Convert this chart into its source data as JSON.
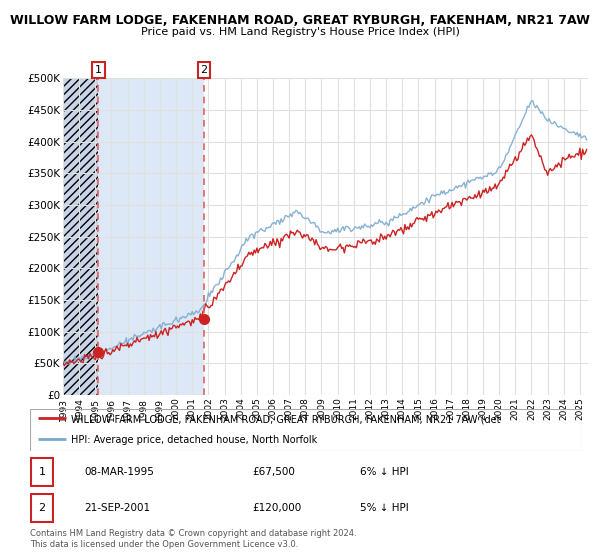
{
  "title": "WILLOW FARM LODGE, FAKENHAM ROAD, GREAT RYBURGH, FAKENHAM, NR21 7AW",
  "subtitle": "Price paid vs. HM Land Registry's House Price Index (HPI)",
  "background_color": "#ffffff",
  "plot_bg_color": "#ffffff",
  "hatch_color": "#c8d4e8",
  "highlight_color": "#dce8f5",
  "grid_color": "#e0e0e0",
  "legend_label_red": "WILLOW FARM LODGE, FAKENHAM ROAD, GREAT RYBURGH, FAKENHAM, NR21 7AW (det",
  "legend_label_blue": "HPI: Average price, detached house, North Norfolk",
  "table_data": [
    [
      "1",
      "08-MAR-1995",
      "£67,500",
      "6% ↓ HPI"
    ],
    [
      "2",
      "21-SEP-2001",
      "£120,000",
      "5% ↓ HPI"
    ]
  ],
  "footer": "Contains HM Land Registry data © Crown copyright and database right 2024.\nThis data is licensed under the Open Government Licence v3.0.",
  "ylim": [
    0,
    500000
  ],
  "yticks": [
    0,
    50000,
    100000,
    150000,
    200000,
    250000,
    300000,
    350000,
    400000,
    450000,
    500000
  ],
  "ytick_labels": [
    "£0",
    "£50K",
    "£100K",
    "£150K",
    "£200K",
    "£250K",
    "£300K",
    "£350K",
    "£400K",
    "£450K",
    "£500K"
  ],
  "xlim_start": 1993.0,
  "xlim_end": 2025.5,
  "hpi_color": "#7aaad0",
  "price_color": "#cc2222",
  "dashed_line_color": "#e06060",
  "purchase_year1": 1995.19,
  "purchase_year2": 2001.72,
  "purchase_price1": 67500,
  "purchase_price2": 120000
}
